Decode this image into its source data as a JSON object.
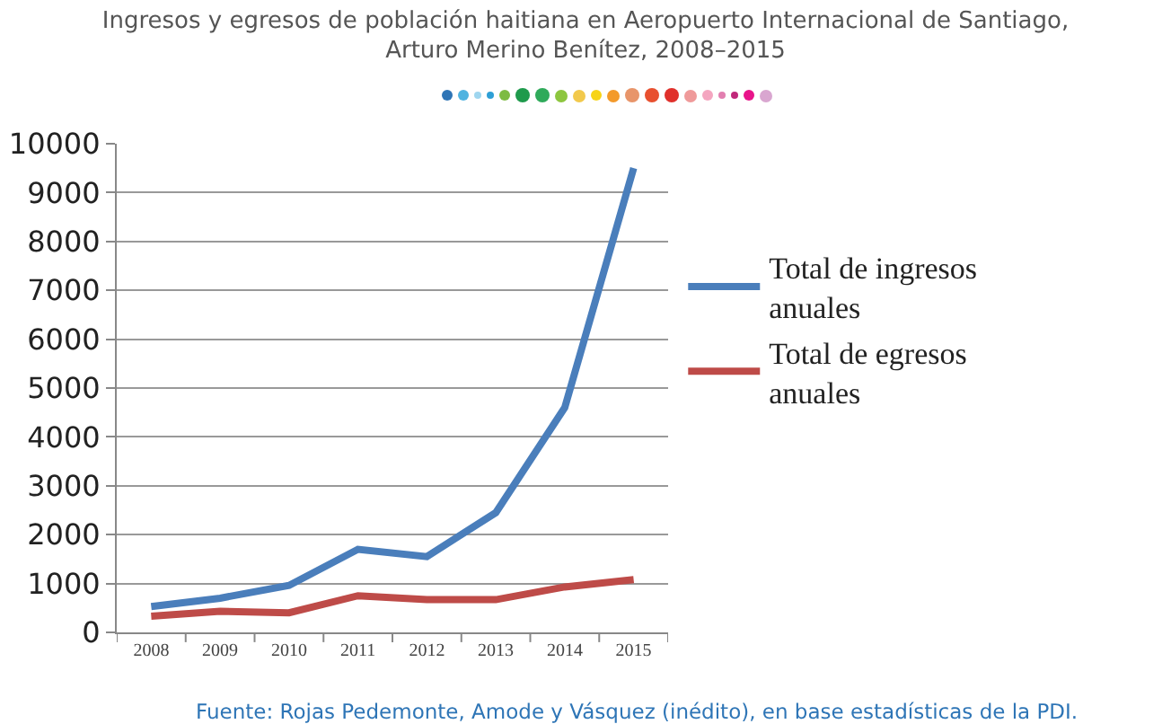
{
  "chart_data": {
    "type": "line",
    "title": "Ingresos y egresos de población haitiana en Aeropuerto Internacional de Santiago,\nArturo Merino Benítez, 2008–2015",
    "categories": [
      "2008",
      "2009",
      "2010",
      "2011",
      "2012",
      "2013",
      "2014",
      "2015"
    ],
    "series": [
      {
        "name": "Total de ingresos\nanuales",
        "color": "#4a7ebb",
        "values": [
          530,
          700,
          960,
          1700,
          1550,
          2450,
          4600,
          9500
        ]
      },
      {
        "name": "Total de egresos\nanuales",
        "color": "#be4b48",
        "values": [
          330,
          430,
          400,
          750,
          670,
          670,
          930,
          1080
        ]
      }
    ],
    "ylim": [
      0,
      10000
    ],
    "yticks": [
      0,
      1000,
      2000,
      3000,
      4000,
      5000,
      6000,
      7000,
      8000,
      9000,
      10000
    ],
    "grid": "y",
    "legend": "right",
    "marker": "none",
    "line_style": "solid",
    "annotations": [
      "Fuente: Rojas Pedemonte, Amode y Vásquez (inédito), en base estadísticas de la PDI."
    ]
  }
}
